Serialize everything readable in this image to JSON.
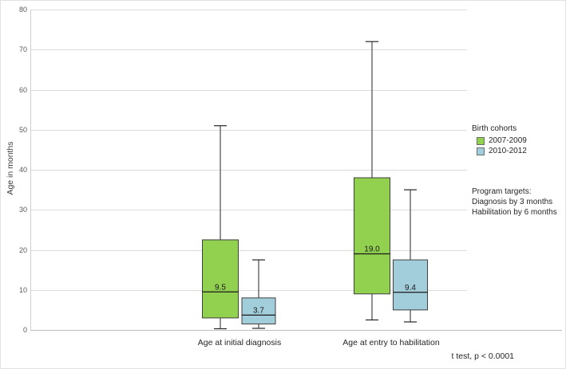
{
  "chart_data": {
    "type": "boxplot",
    "title": "",
    "xlabel": "",
    "ylabel": "Age in months",
    "ylim": [
      0,
      80
    ],
    "ytick_step": 10,
    "grid": true,
    "legend_position": "right",
    "categories": [
      "Age at initial diagnosis",
      "Age at entry to habilitation"
    ],
    "series": [
      {
        "name": "2007-2009",
        "color": "#92d050",
        "boxes": [
          {
            "min": 0.3,
            "q1": 3,
            "median": 9.5,
            "q3": 22.5,
            "max": 51,
            "label": "9.5"
          },
          {
            "min": 2.5,
            "q1": 9,
            "median": 19.0,
            "q3": 38,
            "max": 72,
            "label": "19.0"
          }
        ]
      },
      {
        "name": "2010-2012",
        "color": "#a2cedc",
        "boxes": [
          {
            "min": 0.4,
            "q1": 1.5,
            "median": 3.7,
            "q3": 8,
            "max": 17.5,
            "label": "3.7"
          },
          {
            "min": 2,
            "q1": 5,
            "median": 9.4,
            "q3": 17.5,
            "max": 35,
            "label": "9.4"
          }
        ]
      }
    ]
  },
  "legend": {
    "title": "Birth cohorts"
  },
  "annotations": {
    "program_targets": [
      "Program targets:",
      "Diagnosis by 3 months",
      "Habilitation by 6 months"
    ],
    "stat_note": "t test, p < 0.0001"
  }
}
